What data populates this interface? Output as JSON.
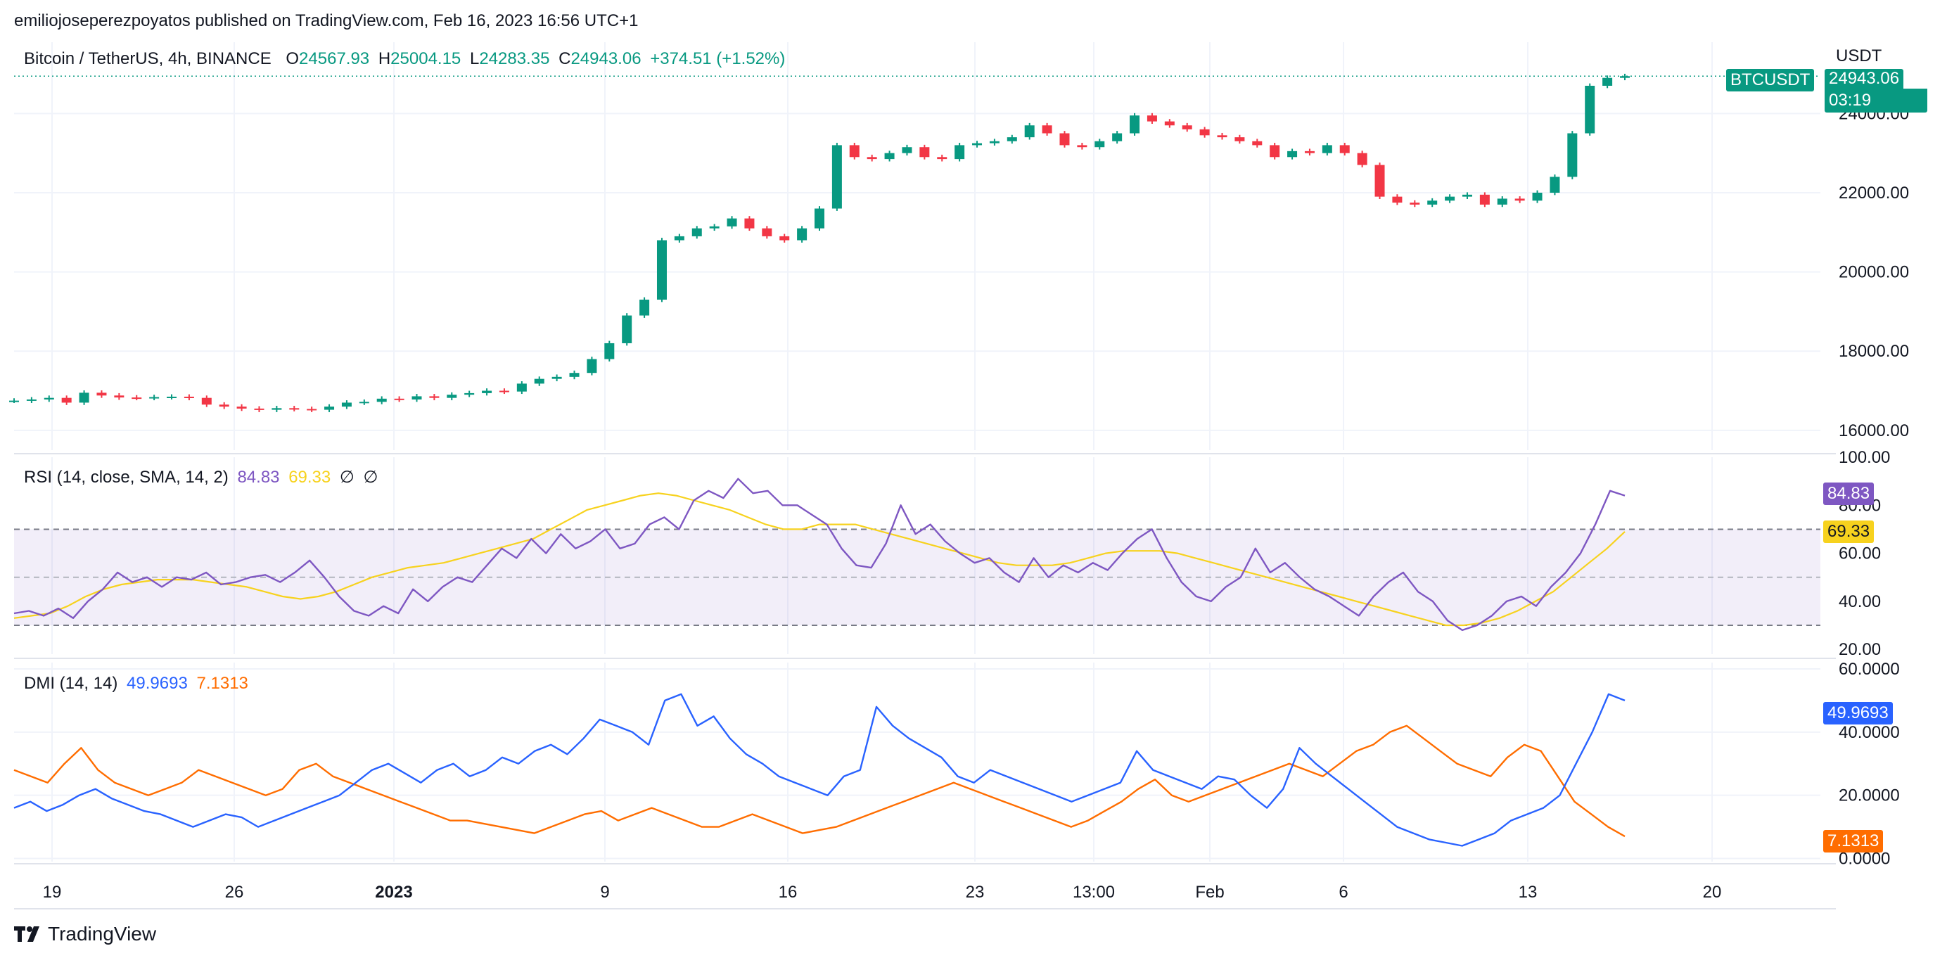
{
  "header": {
    "publisher_line": "emiliojoseperezpoyatos published on TradingView.com, Feb 16, 2023 16:56 UTC+1"
  },
  "main": {
    "symbol_desc": "Bitcoin / TetherUS, 4h, BINANCE",
    "ohlc": {
      "o_label": "O",
      "o": "24567.93",
      "h_label": "H",
      "h": "25004.15",
      "l_label": "L",
      "l": "24283.35",
      "c_label": "C",
      "c": "24943.06",
      "change": "+374.51 (+1.52%)"
    },
    "currency_label": "USDT",
    "symbol_badge": "BTCUSDT",
    "price_badge": "24943.06",
    "countdown": "03:19"
  },
  "rsi": {
    "title": "RSI (14, close, SMA, 14, 2)",
    "value": "84.83",
    "sma_value": "69.33",
    "na1": "∅",
    "na2": "∅"
  },
  "dmi": {
    "title": "DMI (14, 14)",
    "plus": "49.9693",
    "minus": "7.1313"
  },
  "footer": {
    "brand": "TradingView"
  },
  "colors": {
    "up": "#089981",
    "down": "#F23645",
    "rsi": "#7E57C2",
    "rsi_sma": "#F7D21E",
    "di_plus": "#2962FF",
    "di_minus": "#FF6D00"
  },
  "chart_data": [
    {
      "type": "candlestick",
      "title": "Bitcoin / TetherUS, 4h, BINANCE",
      "ylabel": "USDT",
      "ylim": [
        15500,
        25800
      ],
      "y_ticks": [
        "16000.00",
        "18000.00",
        "20000.00",
        "22000.00",
        "24000.00"
      ],
      "x_ticks": [
        "19",
        "26",
        "2023",
        "9",
        "16",
        "23",
        "13:00",
        "Feb",
        "6",
        "13",
        "20"
      ],
      "close_points": [
        [
          0,
          16750
        ],
        [
          10,
          16780
        ],
        [
          20,
          16820
        ],
        [
          30,
          16700
        ],
        [
          40,
          16950
        ],
        [
          50,
          16880
        ],
        [
          60,
          16830
        ],
        [
          70,
          16820
        ],
        [
          80,
          16840
        ],
        [
          90,
          16850
        ],
        [
          100,
          16820
        ],
        [
          110,
          16650
        ],
        [
          120,
          16600
        ],
        [
          130,
          16550
        ],
        [
          140,
          16520
        ],
        [
          150,
          16560
        ],
        [
          160,
          16540
        ],
        [
          170,
          16520
        ],
        [
          180,
          16600
        ],
        [
          190,
          16700
        ],
        [
          200,
          16720
        ],
        [
          210,
          16800
        ],
        [
          220,
          16780
        ],
        [
          230,
          16860
        ],
        [
          240,
          16820
        ],
        [
          250,
          16900
        ],
        [
          260,
          16940
        ],
        [
          270,
          17000
        ],
        [
          280,
          16980
        ],
        [
          290,
          17180
        ],
        [
          300,
          17300
        ],
        [
          310,
          17350
        ],
        [
          320,
          17450
        ],
        [
          330,
          17800
        ],
        [
          340,
          18200
        ],
        [
          350,
          18900
        ],
        [
          360,
          19300
        ],
        [
          370,
          20800
        ],
        [
          380,
          20900
        ],
        [
          390,
          21100
        ],
        [
          400,
          21150
        ],
        [
          410,
          21350
        ],
        [
          420,
          21100
        ],
        [
          430,
          20900
        ],
        [
          440,
          20800
        ],
        [
          450,
          21100
        ],
        [
          460,
          21600
        ],
        [
          470,
          23200
        ],
        [
          480,
          22900
        ],
        [
          490,
          22850
        ],
        [
          500,
          23000
        ],
        [
          510,
          23150
        ],
        [
          520,
          22900
        ],
        [
          530,
          22850
        ],
        [
          540,
          23200
        ],
        [
          550,
          23250
        ],
        [
          560,
          23300
        ],
        [
          570,
          23400
        ],
        [
          580,
          23700
        ],
        [
          590,
          23500
        ],
        [
          600,
          23200
        ],
        [
          610,
          23150
        ],
        [
          620,
          23300
        ],
        [
          630,
          23500
        ],
        [
          640,
          23950
        ],
        [
          650,
          23800
        ],
        [
          660,
          23700
        ],
        [
          670,
          23600
        ],
        [
          680,
          23450
        ],
        [
          690,
          23400
        ],
        [
          700,
          23300
        ],
        [
          710,
          23200
        ],
        [
          720,
          22900
        ],
        [
          730,
          23050
        ],
        [
          740,
          23000
        ],
        [
          750,
          23200
        ],
        [
          760,
          23000
        ],
        [
          770,
          22700
        ],
        [
          780,
          21900
        ],
        [
          790,
          21750
        ],
        [
          800,
          21700
        ],
        [
          810,
          21800
        ],
        [
          820,
          21900
        ],
        [
          830,
          21950
        ],
        [
          840,
          21700
        ],
        [
          850,
          21850
        ],
        [
          860,
          21800
        ],
        [
          870,
          22000
        ],
        [
          880,
          22400
        ],
        [
          890,
          23500
        ],
        [
          900,
          24700
        ],
        [
          910,
          24900
        ],
        [
          920,
          24943
        ]
      ],
      "last_close": 24943.06
    },
    {
      "type": "line",
      "title": "RSI (14, close, SMA, 14, 2)",
      "ylim": [
        18,
        100
      ],
      "y_ticks": [
        "20.00",
        "40.00",
        "60.00",
        "80.00",
        "100.00"
      ],
      "bands": {
        "upper": 70,
        "middle": 50,
        "lower": 30
      },
      "series": [
        {
          "name": "RSI",
          "values": [
            35,
            36,
            34,
            37,
            33,
            40,
            45,
            52,
            48,
            50,
            46,
            50,
            49,
            52,
            47,
            48,
            50,
            51,
            48,
            52,
            57,
            50,
            42,
            36,
            34,
            38,
            35,
            45,
            40,
            46,
            50,
            48,
            55,
            62,
            58,
            66,
            60,
            68,
            62,
            65,
            70,
            62,
            64,
            72,
            75,
            70,
            82,
            86,
            83,
            91,
            85,
            86,
            80,
            80,
            76,
            72,
            62,
            55,
            54,
            64,
            80,
            68,
            72,
            65,
            60,
            56,
            58,
            52,
            48,
            58,
            50,
            55,
            52,
            56,
            53,
            60,
            66,
            70,
            58,
            48,
            42,
            40,
            46,
            50,
            62,
            52,
            56,
            50,
            45,
            42,
            38,
            34,
            42,
            48,
            52,
            44,
            40,
            32,
            28,
            30,
            34,
            40,
            42,
            38,
            46,
            52,
            60,
            72,
            86,
            84
          ]
        },
        {
          "name": "RSI-based MA",
          "values": [
            33,
            34,
            35,
            38,
            42,
            45,
            47,
            48,
            49,
            49,
            49,
            48,
            47,
            46,
            44,
            42,
            41,
            42,
            44,
            47,
            50,
            52,
            54,
            55,
            56,
            58,
            60,
            62,
            64,
            66,
            70,
            74,
            78,
            80,
            82,
            84,
            85,
            84,
            82,
            80,
            78,
            75,
            72,
            70,
            70,
            72,
            72,
            72,
            70,
            68,
            66,
            64,
            62,
            60,
            58,
            56,
            55,
            55,
            55,
            56,
            58,
            60,
            61,
            61,
            61,
            60,
            58,
            56,
            54,
            52,
            50,
            48,
            46,
            44,
            42,
            40,
            38,
            36,
            34,
            32,
            30,
            30,
            31,
            33,
            36,
            40,
            44,
            50,
            56,
            62,
            69
          ]
        }
      ]
    },
    {
      "type": "line",
      "title": "DMI (14, 14)",
      "ylim": [
        -1,
        62
      ],
      "y_ticks": [
        "0.0000",
        "20.0000",
        "40.0000",
        "60.0000"
      ],
      "series": [
        {
          "name": "+DI",
          "values": [
            16,
            18,
            15,
            17,
            20,
            22,
            19,
            17,
            15,
            14,
            12,
            10,
            12,
            14,
            13,
            10,
            12,
            14,
            16,
            18,
            20,
            24,
            28,
            30,
            27,
            24,
            28,
            30,
            26,
            28,
            32,
            30,
            34,
            36,
            33,
            38,
            44,
            42,
            40,
            36,
            50,
            52,
            42,
            45,
            38,
            33,
            30,
            26,
            24,
            22,
            20,
            26,
            28,
            48,
            42,
            38,
            35,
            32,
            26,
            24,
            28,
            26,
            24,
            22,
            20,
            18,
            20,
            22,
            24,
            34,
            28,
            26,
            24,
            22,
            26,
            25,
            20,
            16,
            22,
            35,
            30,
            26,
            22,
            18,
            14,
            10,
            8,
            6,
            5,
            4,
            6,
            8,
            12,
            14,
            16,
            20,
            30,
            40,
            52,
            50
          ]
        },
        {
          "name": "-DI",
          "values": [
            28,
            26,
            24,
            30,
            35,
            28,
            24,
            22,
            20,
            22,
            24,
            28,
            26,
            24,
            22,
            20,
            22,
            28,
            30,
            26,
            24,
            22,
            20,
            18,
            16,
            14,
            12,
            12,
            11,
            10,
            9,
            8,
            10,
            12,
            14,
            15,
            12,
            14,
            16,
            14,
            12,
            10,
            10,
            12,
            14,
            12,
            10,
            8,
            9,
            10,
            12,
            14,
            16,
            18,
            20,
            22,
            24,
            22,
            20,
            18,
            16,
            14,
            12,
            10,
            12,
            15,
            18,
            22,
            25,
            20,
            18,
            20,
            22,
            24,
            26,
            28,
            30,
            28,
            26,
            30,
            34,
            36,
            40,
            42,
            38,
            34,
            30,
            28,
            26,
            32,
            36,
            34,
            26,
            18,
            14,
            10,
            7
          ]
        }
      ]
    }
  ]
}
